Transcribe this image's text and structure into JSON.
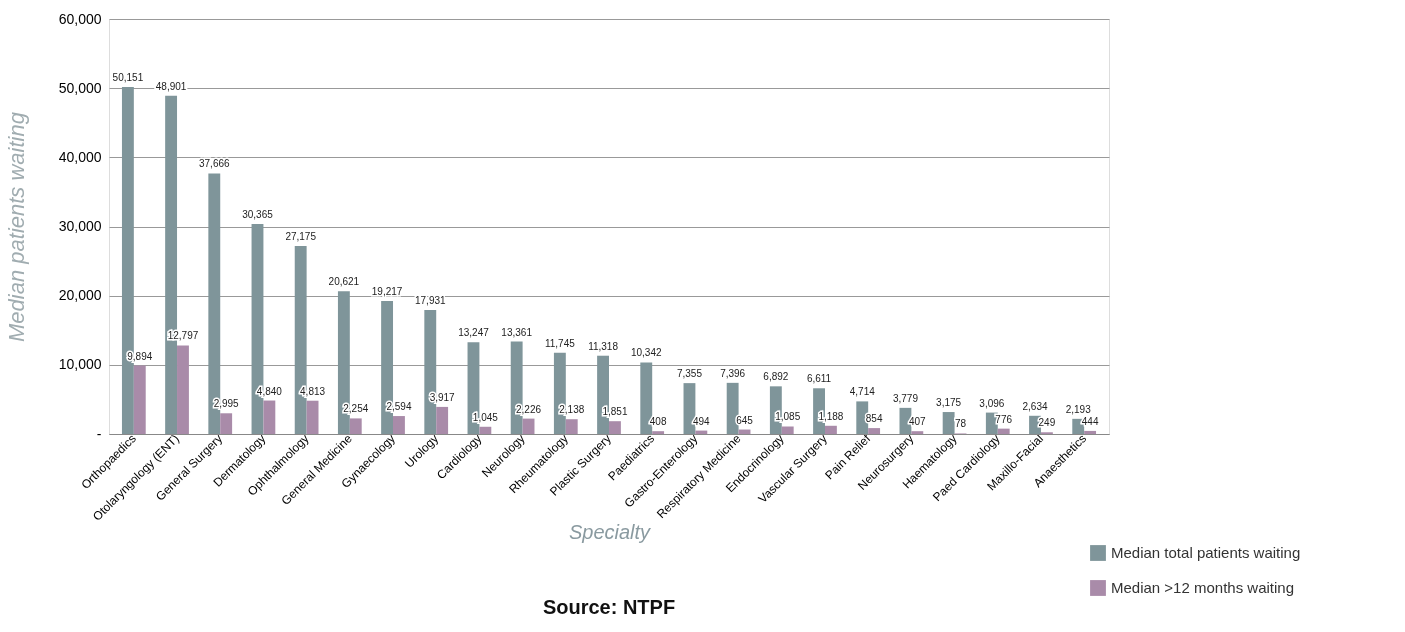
{
  "chart_data": {
    "type": "bar",
    "categories": [
      "Orthopaedics",
      "Otolaryngology (ENT)",
      "General Surgery",
      "Dermatology",
      "Ophthalmology",
      "General Medicine",
      "Gynaecology",
      "Urology",
      "Cardiology",
      "Neurology",
      "Rheumatology",
      "Plastic Surgery",
      "Paediatrics",
      "Gastro-Enterology",
      "Respiratory Medicine",
      "Endocrinology",
      "Vascular Surgery",
      "Pain Relief",
      "Neurosurgery",
      "Haematology",
      "Paed Cardiology",
      "Maxillo-Facial",
      "Anaesthetics"
    ],
    "series": [
      {
        "name": "Median total patients waiting",
        "color": "#7f959a",
        "values": [
          50151,
          48901,
          37666,
          30365,
          27175,
          20621,
          19217,
          17931,
          13247,
          13361,
          11745,
          11318,
          10342,
          7355,
          7396,
          6892,
          6611,
          4714,
          3779,
          3175,
          3096,
          2634,
          2193
        ],
        "value_labels": [
          "50,151",
          "48,901",
          "37,666",
          "30,365",
          "27,175",
          "20,621",
          "19,217",
          "17,931",
          "13,247",
          "13,361",
          "11,745",
          "11,318",
          "10,342",
          "7,355",
          "7,396",
          "6,892",
          "6,611",
          "4,714",
          "3,779",
          "3,175",
          "3,096",
          "2,634",
          "2,193"
        ]
      },
      {
        "name": "Median >12 months waiting",
        "color": "#a98ba9",
        "values": [
          9894,
          12797,
          2995,
          4840,
          4813,
          2254,
          2594,
          3917,
          1045,
          2226,
          2138,
          1851,
          408,
          494,
          645,
          1085,
          1188,
          854,
          407,
          78,
          776,
          249,
          444
        ],
        "value_labels": [
          "9,894",
          "12,797",
          "2,995",
          "4,840",
          "4,813",
          "2,254",
          "2,594",
          "3,917",
          "1,045",
          "2,226",
          "2,138",
          "1,851",
          "408",
          "494",
          "645",
          "1,085",
          "1,188",
          "854",
          "407",
          "78",
          "776",
          "249",
          "444"
        ]
      }
    ],
    "ylabel": "Median patients waiting",
    "xlabel": "Specialty",
    "annotations": [
      "Source: NTPF"
    ],
    "ylim": [
      0,
      60000
    ],
    "yticks": [
      {
        "value": 0,
        "label": "-"
      },
      {
        "value": 10000,
        "label": "10,000"
      },
      {
        "value": 20000,
        "label": "20,000"
      },
      {
        "value": 30000,
        "label": "30,000"
      },
      {
        "value": 40000,
        "label": "40,000"
      },
      {
        "value": 50000,
        "label": "50,000"
      },
      {
        "value": 60000,
        "label": "60,000"
      }
    ],
    "grid": "y",
    "legend": "bottom right"
  }
}
